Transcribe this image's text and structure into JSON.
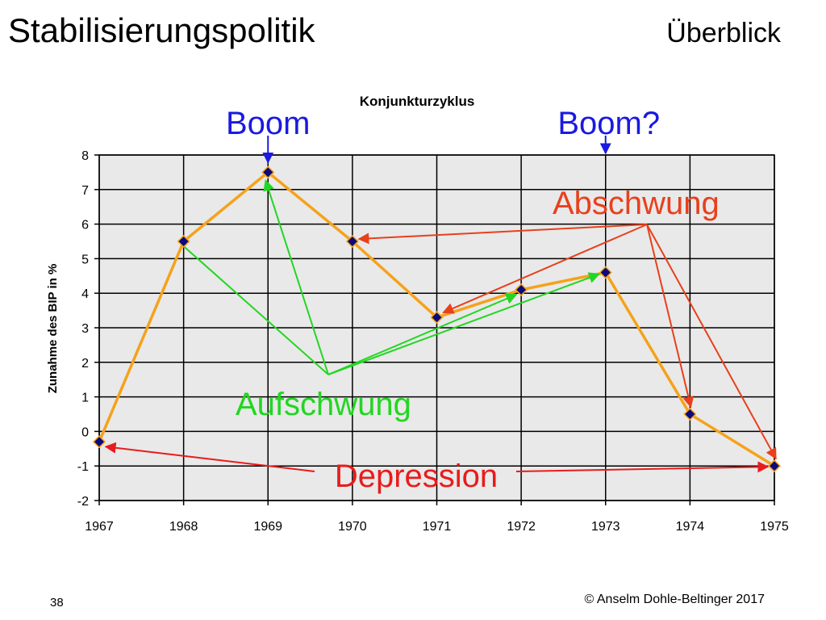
{
  "slide": {
    "title": "Stabilisierungspolitik",
    "subtitle": "Überblick",
    "page_number": "38",
    "copyright": "© Anselm Dohle-Beltinger 2017"
  },
  "chart_data": {
    "type": "line",
    "title": "Konjunkturzyklus",
    "ylabel": "Zunahme des BIP in %",
    "xlabel": "",
    "x": [
      "1967",
      "1968",
      "1969",
      "1970",
      "1971",
      "1972",
      "1973",
      "1974",
      "1975"
    ],
    "series": [
      {
        "values": [
          -0.3,
          5.5,
          7.5,
          5.5,
          3.3,
          4.1,
          4.6,
          0.5,
          -1.0
        ],
        "color": "#f5a21b",
        "marker_color": "#0a0a7a"
      }
    ],
    "ylim": [
      -2,
      8
    ],
    "yticks": [
      "-2",
      "-1",
      "0",
      "1",
      "2",
      "3",
      "4",
      "5",
      "6",
      "7",
      "8"
    ],
    "grid": true,
    "plot_background": "#e9e9e9",
    "annotations": [
      {
        "text": "Boom",
        "color": "#1a1ae0",
        "target_year": "1969"
      },
      {
        "text": "Boom?",
        "color": "#1a1ae0",
        "target_year": "1973"
      },
      {
        "text": "Abschwung",
        "color": "#e8401c",
        "targets": [
          "1970",
          "1971",
          "1974",
          "1975"
        ]
      },
      {
        "text": "Aufschwung",
        "color": "#22d622",
        "targets": [
          "1968",
          "1969",
          "1972",
          "1973"
        ]
      },
      {
        "text": "Depression",
        "color": "#e81c1c",
        "targets": [
          "1967",
          "1975"
        ]
      }
    ]
  }
}
